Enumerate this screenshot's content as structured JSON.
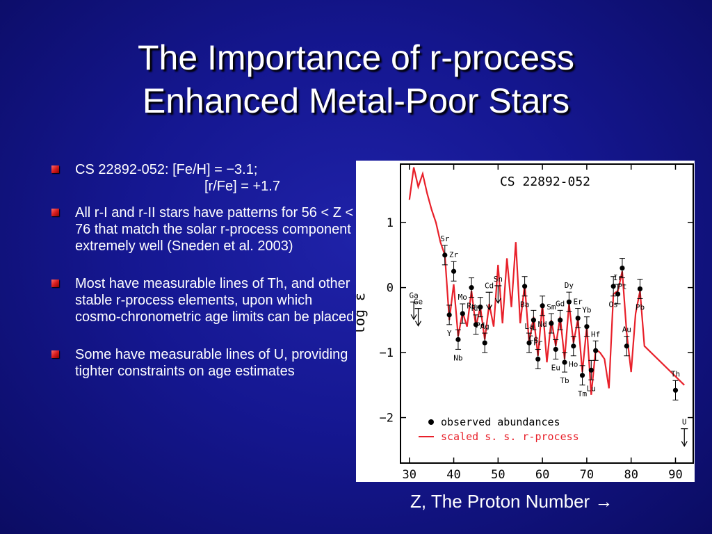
{
  "slide": {
    "title_line1": "The Importance of r-process",
    "title_line2": "Enhanced Metal-Poor Stars",
    "bullets": [
      {
        "line1": "CS 22892-052: [Fe/H] = −3.1;",
        "line2": "[r/Fe] = +1.7"
      },
      {
        "text": "All r-I and r-II stars have patterns for 56 < Z < 76 that match the solar r-process component extremely well (Sneden et al. 2003)"
      },
      {
        "text": "Most have measurable lines of Th, and other stable r-process elements, upon which cosmo-chronometric age limits can be placed"
      },
      {
        "text": "Some have measurable lines of U, providing tighter constraints on age estimates"
      }
    ],
    "caption": "Z, The Proton Number →",
    "bullet_color": "#d81e1e"
  },
  "chart_data": {
    "type": "scatter",
    "title": "CS 22892-052",
    "xlabel": "",
    "ylabel": "log ε",
    "xlim": [
      28,
      94
    ],
    "ylim": [
      -2.7,
      1.9
    ],
    "xticks": [
      30,
      40,
      50,
      60,
      70,
      80,
      90
    ],
    "yticks": [
      1,
      0,
      -1,
      -2
    ],
    "ytick_labels": [
      "1",
      "0",
      "−1",
      "−2"
    ],
    "legend": [
      "observed abundances",
      "scaled s. s. r-process"
    ],
    "observed_color": "#000000",
    "curve_color": "#e8202a",
    "observed": [
      {
        "el": "Sr",
        "z": 38,
        "y": 0.5
      },
      {
        "el": "Y",
        "z": 39,
        "y": -0.42
      },
      {
        "el": "Zr",
        "z": 40,
        "y": 0.25
      },
      {
        "el": "Nb",
        "z": 41,
        "y": -0.8
      },
      {
        "el": "Mo",
        "z": 42,
        "y": -0.4
      },
      {
        "el": "Ru",
        "z": 44,
        "y": 0.0
      },
      {
        "el": "Rh",
        "z": 45,
        "y": -0.57
      },
      {
        "el": "Pd",
        "z": 46,
        "y": -0.3
      },
      {
        "el": "Ag",
        "z": 47,
        "y": -0.85
      },
      {
        "el": "Ba",
        "z": 56,
        "y": 0.02
      },
      {
        "el": "La",
        "z": 57,
        "y": -0.85
      },
      {
        "el": "Ce",
        "z": 58,
        "y": -0.5
      },
      {
        "el": "Pr",
        "z": 59,
        "y": -1.1
      },
      {
        "el": "Nd",
        "z": 60,
        "y": -0.28
      },
      {
        "el": "Sm",
        "z": 62,
        "y": -0.55
      },
      {
        "el": "Eu",
        "z": 63,
        "y": -0.95
      },
      {
        "el": "Gd",
        "z": 64,
        "y": -0.5
      },
      {
        "el": "Tb",
        "z": 65,
        "y": -1.15
      },
      {
        "el": "Dy",
        "z": 66,
        "y": -0.22
      },
      {
        "el": "Ho",
        "z": 67,
        "y": -0.9
      },
      {
        "el": "Er",
        "z": 68,
        "y": -0.47
      },
      {
        "el": "Tm",
        "z": 69,
        "y": -1.35
      },
      {
        "el": "Yb",
        "z": 70,
        "y": -0.6
      },
      {
        "el": "Lu",
        "z": 71,
        "y": -1.27
      },
      {
        "el": "Hf",
        "z": 72,
        "y": -0.97
      },
      {
        "el": "Os",
        "z": 76,
        "y": 0.02
      },
      {
        "el": "Ir",
        "z": 77,
        "y": -0.1
      },
      {
        "el": "Pt",
        "z": 78,
        "y": 0.3
      },
      {
        "el": "Au",
        "z": 79,
        "y": -0.9
      },
      {
        "el": "Pb",
        "z": 82,
        "y": -0.02
      },
      {
        "el": "Th",
        "z": 90,
        "y": -1.58
      }
    ],
    "upper_limits": [
      {
        "el": "Ga",
        "z": 31,
        "y": -0.35
      },
      {
        "el": "Ge",
        "z": 32,
        "y": -0.45
      },
      {
        "el": "Cd",
        "z": 48,
        "y": -0.2
      },
      {
        "el": "Sn",
        "z": 50,
        "y": -0.1
      },
      {
        "el": "U",
        "z": 92,
        "y": -2.3
      }
    ],
    "curve": [
      [
        30,
        1.35
      ],
      [
        31,
        1.85
      ],
      [
        32,
        1.55
      ],
      [
        33,
        1.75
      ],
      [
        34,
        1.45
      ],
      [
        35,
        1.2
      ],
      [
        36,
        1.0
      ],
      [
        37,
        0.7
      ],
      [
        38,
        0.5
      ],
      [
        39,
        -0.5
      ],
      [
        40,
        0.05
      ],
      [
        41,
        -0.75
      ],
      [
        42,
        -0.38
      ],
      [
        43,
        -0.6
      ],
      [
        44,
        -0.05
      ],
      [
        45,
        -0.6
      ],
      [
        46,
        -0.3
      ],
      [
        47,
        -0.8
      ],
      [
        48,
        -0.25
      ],
      [
        49,
        -0.6
      ],
      [
        50,
        0.35
      ],
      [
        51,
        -0.55
      ],
      [
        52,
        0.45
      ],
      [
        53,
        -0.3
      ],
      [
        54,
        0.7
      ],
      [
        55,
        -0.55
      ],
      [
        56,
        0.05
      ],
      [
        57,
        -0.85
      ],
      [
        58,
        -0.45
      ],
      [
        59,
        -1.05
      ],
      [
        60,
        -0.25
      ],
      [
        61,
        -1.15
      ],
      [
        62,
        -0.5
      ],
      [
        63,
        -0.9
      ],
      [
        64,
        -0.45
      ],
      [
        65,
        -1.1
      ],
      [
        66,
        -0.25
      ],
      [
        67,
        -0.85
      ],
      [
        68,
        -0.48
      ],
      [
        69,
        -1.3
      ],
      [
        70,
        -0.6
      ],
      [
        71,
        -1.65
      ],
      [
        72,
        -0.95
      ],
      [
        73,
        -1.0
      ],
      [
        74,
        -1.1
      ],
      [
        75,
        -1.55
      ],
      [
        76,
        -0.1
      ],
      [
        77,
        -0.05
      ],
      [
        78,
        0.25
      ],
      [
        79,
        -0.7
      ],
      [
        80,
        -1.3
      ],
      [
        81,
        -0.4
      ],
      [
        82,
        -0.05
      ],
      [
        83,
        -0.9
      ],
      [
        92,
        -1.5
      ]
    ]
  }
}
